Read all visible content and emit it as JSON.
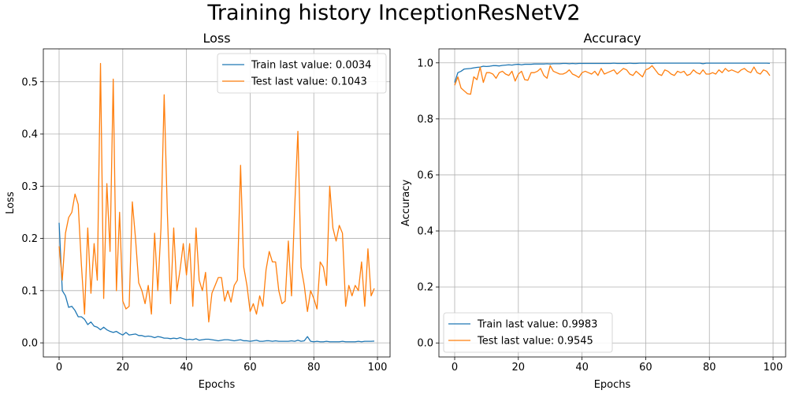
{
  "figure": {
    "title": "Training history InceptionResNetV2"
  },
  "colors": {
    "train": "#1f77b4",
    "test": "#ff7f0e",
    "grid": "#b0b0b0"
  },
  "chart_data": [
    {
      "type": "line",
      "title": "Loss",
      "xlabel": "Epochs",
      "ylabel": "Loss",
      "xlim": [
        -4.95,
        103.95
      ],
      "ylim": [
        -0.027,
        0.563
      ],
      "xticks": [
        0,
        20,
        40,
        60,
        80,
        100
      ],
      "yticks": [
        0.0,
        0.1,
        0.2,
        0.3,
        0.4,
        0.5
      ],
      "ytick_labels": [
        "0.0",
        "0.1",
        "0.2",
        "0.3",
        "0.4",
        "0.5"
      ],
      "grid": true,
      "legend": "top-right",
      "x": "epochs 0-99",
      "series": [
        {
          "name": "Train last value: 0.0034",
          "values": [
            0.23,
            0.1,
            0.09,
            0.068,
            0.07,
            0.062,
            0.05,
            0.05,
            0.045,
            0.035,
            0.04,
            0.032,
            0.03,
            0.025,
            0.03,
            0.025,
            0.022,
            0.02,
            0.022,
            0.018,
            0.015,
            0.02,
            0.015,
            0.016,
            0.017,
            0.014,
            0.014,
            0.012,
            0.013,
            0.012,
            0.01,
            0.012,
            0.011,
            0.009,
            0.009,
            0.008,
            0.009,
            0.008,
            0.01,
            0.008,
            0.006,
            0.007,
            0.006,
            0.008,
            0.005,
            0.006,
            0.007,
            0.007,
            0.006,
            0.005,
            0.004,
            0.005,
            0.006,
            0.006,
            0.005,
            0.004,
            0.005,
            0.006,
            0.004,
            0.004,
            0.003,
            0.004,
            0.005,
            0.003,
            0.003,
            0.004,
            0.004,
            0.003,
            0.004,
            0.003,
            0.003,
            0.003,
            0.003,
            0.004,
            0.003,
            0.005,
            0.003,
            0.004,
            0.012,
            0.003,
            0.002,
            0.003,
            0.002,
            0.002,
            0.003,
            0.002,
            0.002,
            0.002,
            0.002,
            0.003,
            0.002,
            0.002,
            0.002,
            0.002,
            0.003,
            0.002,
            0.003,
            0.003,
            0.003,
            0.0034
          ]
        },
        {
          "name": "Test last value: 0.1043",
          "values": [
            0.185,
            0.12,
            0.21,
            0.24,
            0.25,
            0.285,
            0.265,
            0.15,
            0.055,
            0.22,
            0.095,
            0.19,
            0.12,
            0.535,
            0.085,
            0.305,
            0.175,
            0.505,
            0.1,
            0.25,
            0.08,
            0.065,
            0.07,
            0.27,
            0.2,
            0.115,
            0.1,
            0.075,
            0.11,
            0.055,
            0.21,
            0.1,
            0.22,
            0.475,
            0.25,
            0.075,
            0.22,
            0.1,
            0.14,
            0.19,
            0.13,
            0.19,
            0.07,
            0.22,
            0.12,
            0.1,
            0.135,
            0.04,
            0.095,
            0.11,
            0.125,
            0.125,
            0.08,
            0.1,
            0.078,
            0.11,
            0.12,
            0.34,
            0.145,
            0.11,
            0.06,
            0.075,
            0.055,
            0.09,
            0.07,
            0.14,
            0.175,
            0.155,
            0.155,
            0.1,
            0.075,
            0.08,
            0.195,
            0.09,
            0.26,
            0.405,
            0.145,
            0.11,
            0.06,
            0.1,
            0.085,
            0.065,
            0.155,
            0.145,
            0.11,
            0.3,
            0.22,
            0.195,
            0.225,
            0.21,
            0.07,
            0.11,
            0.09,
            0.11,
            0.1,
            0.155,
            0.07,
            0.18,
            0.09,
            0.1043
          ]
        }
      ]
    },
    {
      "type": "line",
      "title": "Accuracy",
      "xlabel": "Epochs",
      "ylabel": "Accuracy",
      "xlim": [
        -4.95,
        103.95
      ],
      "ylim": [
        -0.05,
        1.05
      ],
      "xticks": [
        0,
        20,
        40,
        60,
        80,
        100
      ],
      "yticks": [
        0.0,
        0.2,
        0.4,
        0.6,
        0.8,
        1.0
      ],
      "ytick_labels": [
        "0.0",
        "0.2",
        "0.4",
        "0.6",
        "0.8",
        "1.0"
      ],
      "grid": true,
      "legend": "bottom-left",
      "x": "epochs 0-99",
      "series": [
        {
          "name": "Train last value: 0.9983",
          "values": [
            0.93,
            0.965,
            0.97,
            0.978,
            0.979,
            0.98,
            0.982,
            0.984,
            0.985,
            0.988,
            0.987,
            0.988,
            0.99,
            0.99,
            0.989,
            0.991,
            0.992,
            0.993,
            0.992,
            0.994,
            0.995,
            0.993,
            0.995,
            0.995,
            0.995,
            0.996,
            0.996,
            0.996,
            0.996,
            0.997,
            0.996,
            0.997,
            0.997,
            0.997,
            0.998,
            0.998,
            0.997,
            0.998,
            0.997,
            0.998,
            0.998,
            0.998,
            0.998,
            0.998,
            0.998,
            0.998,
            0.998,
            0.998,
            0.998,
            0.998,
            0.999,
            0.998,
            0.998,
            0.998,
            0.998,
            0.999,
            0.998,
            0.998,
            0.999,
            0.999,
            0.999,
            0.999,
            0.998,
            0.999,
            0.999,
            0.999,
            0.999,
            0.999,
            0.999,
            0.999,
            0.999,
            0.999,
            0.999,
            0.999,
            0.999,
            0.999,
            0.999,
            0.999,
            0.997,
            0.999,
            0.999,
            0.999,
            0.999,
            0.999,
            0.999,
            0.999,
            0.999,
            0.999,
            0.999,
            0.999,
            0.999,
            0.999,
            0.999,
            0.999,
            0.999,
            0.999,
            0.999,
            0.999,
            0.999,
            0.9983
          ]
        },
        {
          "name": "Test last value: 0.9545",
          "values": [
            0.92,
            0.95,
            0.91,
            0.9,
            0.89,
            0.888,
            0.95,
            0.94,
            0.985,
            0.93,
            0.965,
            0.965,
            0.96,
            0.945,
            0.965,
            0.97,
            0.96,
            0.955,
            0.97,
            0.935,
            0.96,
            0.97,
            0.94,
            0.938,
            0.965,
            0.965,
            0.97,
            0.98,
            0.955,
            0.945,
            0.99,
            0.97,
            0.965,
            0.96,
            0.96,
            0.965,
            0.975,
            0.96,
            0.955,
            0.948,
            0.965,
            0.97,
            0.965,
            0.96,
            0.97,
            0.955,
            0.98,
            0.96,
            0.965,
            0.97,
            0.975,
            0.96,
            0.97,
            0.98,
            0.975,
            0.96,
            0.955,
            0.97,
            0.96,
            0.95,
            0.975,
            0.98,
            0.99,
            0.975,
            0.96,
            0.955,
            0.975,
            0.97,
            0.96,
            0.955,
            0.97,
            0.965,
            0.97,
            0.955,
            0.96,
            0.975,
            0.965,
            0.96,
            0.975,
            0.96,
            0.96,
            0.965,
            0.96,
            0.975,
            0.965,
            0.98,
            0.97,
            0.975,
            0.97,
            0.965,
            0.975,
            0.98,
            0.97,
            0.965,
            0.985,
            0.965,
            0.96,
            0.975,
            0.97,
            0.9545
          ]
        }
      ]
    }
  ]
}
